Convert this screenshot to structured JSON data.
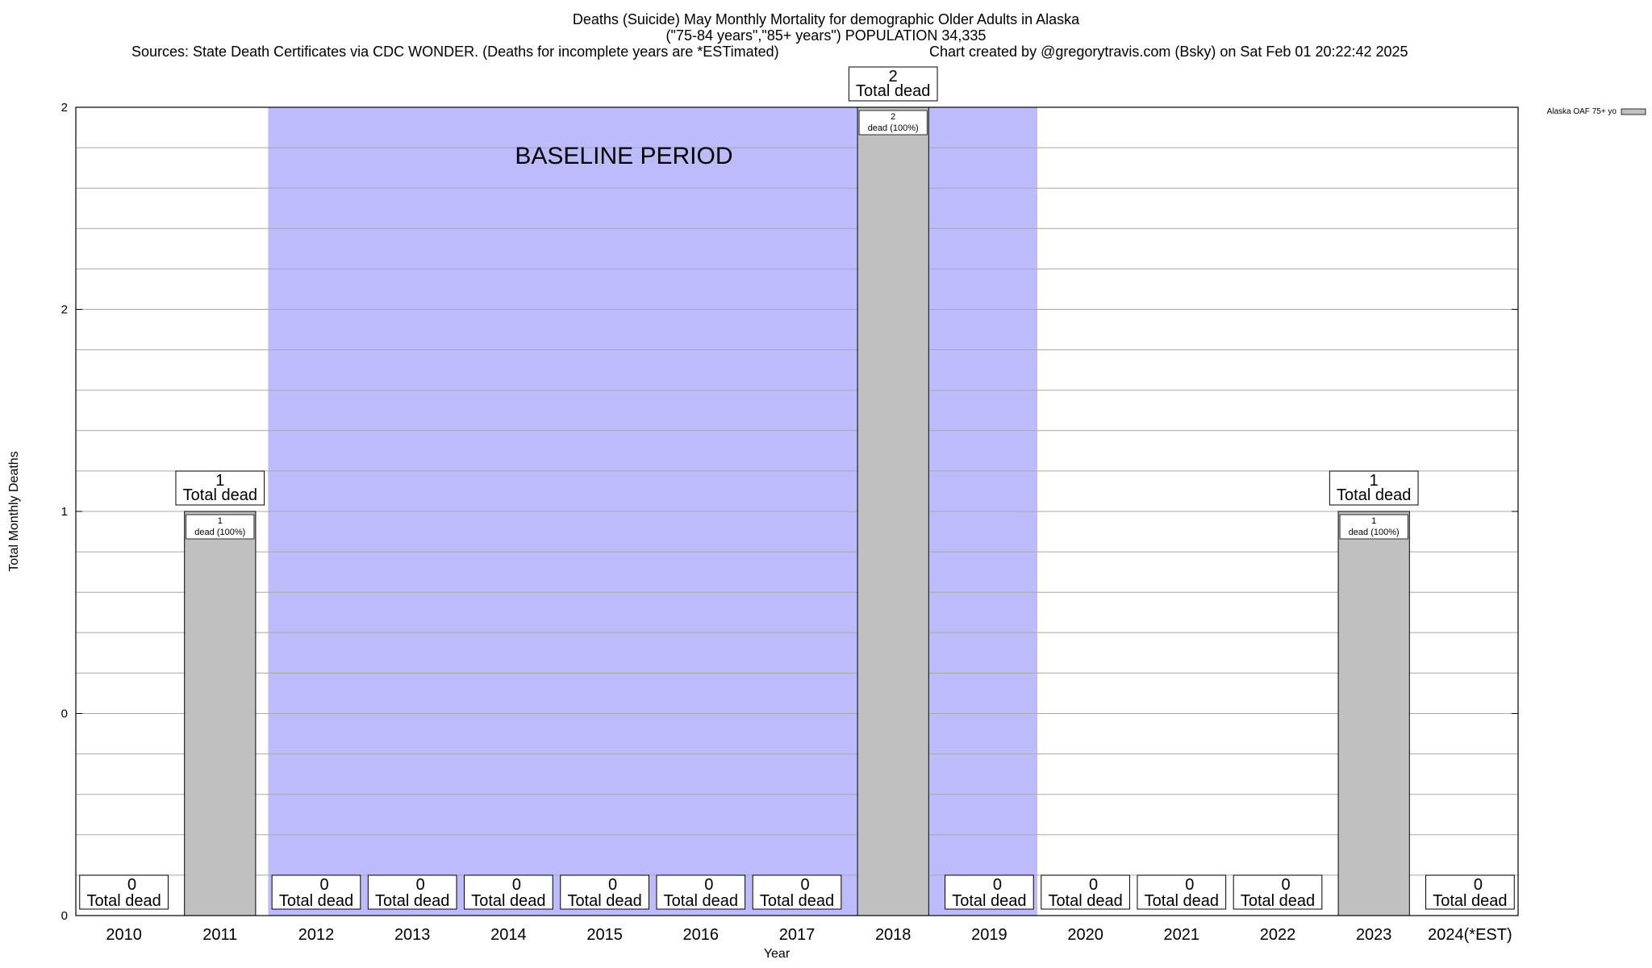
{
  "header": {
    "title": "Deaths (Suicide) May Monthly Mortality for demographic Older Adults in Alaska",
    "subtitle": "(\"75-84 years\",\"85+ years\") POPULATION 34,335",
    "sources": "Sources: State Death Certificates via CDC WONDER. (Deaths for incomplete years are *ESTimated)",
    "credit": "Chart created by @gregorytravis.com (Bsky) on Sat Feb 01 20:22:42 2025"
  },
  "chart_data": {
    "type": "bar",
    "categories": [
      "2010",
      "2011",
      "2012",
      "2013",
      "2014",
      "2015",
      "2016",
      "2017",
      "2018",
      "2019",
      "2020",
      "2021",
      "2022",
      "2023",
      "2024(*EST)"
    ],
    "series": [
      {
        "name": "Alaska OAF 75+ yo",
        "values": [
          0,
          1,
          0,
          0,
          0,
          0,
          0,
          0,
          2,
          0,
          0,
          0,
          0,
          1,
          0
        ],
        "color": "#c0c0c0"
      }
    ],
    "total_label_word": "Total dead",
    "segment_label_suffix": "dead (100%)",
    "xlabel": "Year",
    "ylabel": "Total Monthly Deaths",
    "ylim": [
      0,
      2
    ],
    "yticks": [
      {
        "value": 0,
        "label": "0"
      },
      {
        "value": 0.5,
        "label": "0"
      },
      {
        "value": 1,
        "label": "1"
      },
      {
        "value": 1.5,
        "label": "2"
      },
      {
        "value": 2,
        "label": "2"
      }
    ],
    "baseline_period": {
      "label": "BASELINE PERIOD",
      "start": "2012",
      "end": "2019",
      "color": "#bcbcfc"
    },
    "grid": true,
    "legend_position": "top-right"
  }
}
